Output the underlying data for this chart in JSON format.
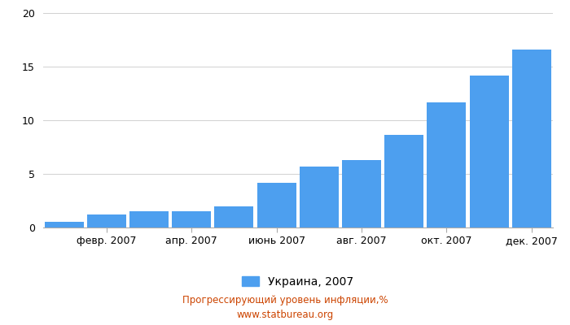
{
  "values": [
    0.5,
    1.2,
    1.5,
    1.5,
    2.0,
    4.2,
    5.7,
    6.3,
    8.6,
    11.7,
    14.2,
    16.6
  ],
  "x_tick_labels": [
    "февр. 2007",
    "апр. 2007",
    "июнь 2007",
    "авг. 2007",
    "окт. 2007",
    "дек. 2007"
  ],
  "x_tick_positions": [
    1.5,
    3.5,
    5.5,
    7.5,
    9.5,
    11.5
  ],
  "bar_color": "#4d9fef",
  "ylim": [
    0,
    20
  ],
  "yticks": [
    0,
    5,
    10,
    15,
    20
  ],
  "legend_label": "Украина, 2007",
  "footer_line1": "Прогрессирующий уровень инфляции,%",
  "footer_line2": "www.statbureau.org",
  "background_color": "#ffffff",
  "grid_color": "#d0d0d0",
  "footer_color": "#cc4400"
}
